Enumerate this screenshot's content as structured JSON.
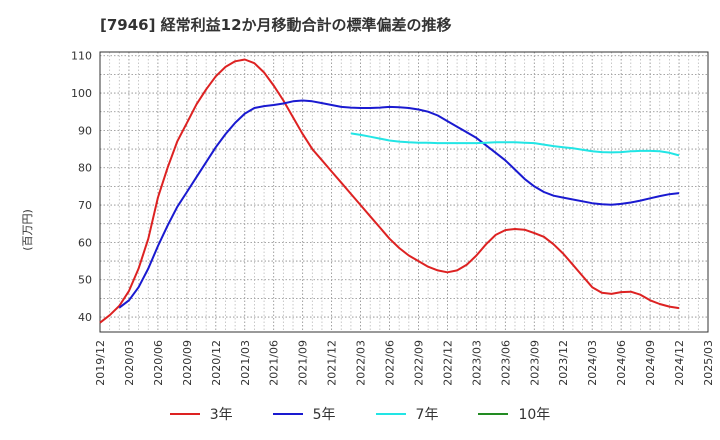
{
  "title": "[7946]  経常利益12か月移動合計の標準偏差の推移",
  "y_unit": "(百万円)",
  "chart_data": {
    "type": "line",
    "title": "[7946]  経常利益12か月移動合計の標準偏差の推移",
    "ylabel": "(百万円)",
    "xlabel": "",
    "ylim": [
      36,
      111
    ],
    "yticks": [
      40,
      50,
      60,
      70,
      80,
      90,
      100,
      110
    ],
    "x_start": "2019/12",
    "x_end": "2025/03",
    "xticks": [
      "2019/12",
      "2020/03",
      "2020/06",
      "2020/09",
      "2020/12",
      "2021/03",
      "2021/06",
      "2021/09",
      "2021/12",
      "2022/03",
      "2022/06",
      "2022/09",
      "2022/12",
      "2023/03",
      "2023/06",
      "2023/09",
      "2023/12",
      "2024/03",
      "2024/06",
      "2024/09",
      "2024/12",
      "2025/03"
    ],
    "grid": true,
    "legend_position": "bottom",
    "series": [
      {
        "name": "3年",
        "color": "#dd2222",
        "points": [
          [
            "2019/12",
            38.5
          ],
          [
            "2020/01",
            40.5
          ],
          [
            "2020/02",
            43
          ],
          [
            "2020/03",
            47
          ],
          [
            "2020/04",
            53
          ],
          [
            "2020/05",
            61
          ],
          [
            "2020/06",
            72
          ],
          [
            "2020/07",
            80
          ],
          [
            "2020/08",
            87
          ],
          [
            "2020/09",
            92
          ],
          [
            "2020/10",
            97
          ],
          [
            "2020/11",
            101
          ],
          [
            "2020/12",
            104.5
          ],
          [
            "2021/01",
            107
          ],
          [
            "2021/02",
            108.5
          ],
          [
            "2021/03",
            109
          ],
          [
            "2021/04",
            108
          ],
          [
            "2021/05",
            105.5
          ],
          [
            "2021/06",
            102
          ],
          [
            "2021/07",
            98
          ],
          [
            "2021/08",
            93.5
          ],
          [
            "2021/09",
            89
          ],
          [
            "2021/10",
            85
          ],
          [
            "2021/11",
            82
          ],
          [
            "2021/12",
            79
          ],
          [
            "2022/01",
            76
          ],
          [
            "2022/02",
            73
          ],
          [
            "2022/03",
            70
          ],
          [
            "2022/04",
            67
          ],
          [
            "2022/05",
            64
          ],
          [
            "2022/06",
            61
          ],
          [
            "2022/07",
            58.5
          ],
          [
            "2022/08",
            56.5
          ],
          [
            "2022/09",
            55
          ],
          [
            "2022/10",
            53.5
          ],
          [
            "2022/11",
            52.5
          ],
          [
            "2022/12",
            52
          ],
          [
            "2023/01",
            52.5
          ],
          [
            "2023/02",
            54
          ],
          [
            "2023/03",
            56.5
          ],
          [
            "2023/04",
            59.5
          ],
          [
            "2023/05",
            62
          ],
          [
            "2023/06",
            63.3
          ],
          [
            "2023/07",
            63.6
          ],
          [
            "2023/08",
            63.4
          ],
          [
            "2023/09",
            62.5
          ],
          [
            "2023/10",
            61.5
          ],
          [
            "2023/11",
            59.5
          ],
          [
            "2023/12",
            57
          ],
          [
            "2024/01",
            54
          ],
          [
            "2024/02",
            51
          ],
          [
            "2024/03",
            48
          ],
          [
            "2024/04",
            46.5
          ],
          [
            "2024/05",
            46.2
          ],
          [
            "2024/06",
            46.7
          ],
          [
            "2024/07",
            46.8
          ],
          [
            "2024/08",
            46
          ],
          [
            "2024/09",
            44.5
          ],
          [
            "2024/10",
            43.5
          ],
          [
            "2024/11",
            42.8
          ],
          [
            "2024/12",
            42.4
          ]
        ]
      },
      {
        "name": "5年",
        "color": "#1a1ad0",
        "points": [
          [
            "2020/02",
            42.5
          ],
          [
            "2020/03",
            44.5
          ],
          [
            "2020/04",
            48
          ],
          [
            "2020/05",
            53
          ],
          [
            "2020/06",
            59
          ],
          [
            "2020/07",
            64.5
          ],
          [
            "2020/08",
            69.5
          ],
          [
            "2020/09",
            73.5
          ],
          [
            "2020/10",
            77.5
          ],
          [
            "2020/11",
            81.5
          ],
          [
            "2020/12",
            85.5
          ],
          [
            "2021/01",
            89
          ],
          [
            "2021/02",
            92
          ],
          [
            "2021/03",
            94.5
          ],
          [
            "2021/04",
            96
          ],
          [
            "2021/05",
            96.5
          ],
          [
            "2021/06",
            96.8
          ],
          [
            "2021/07",
            97.2
          ],
          [
            "2021/08",
            97.8
          ],
          [
            "2021/09",
            98
          ],
          [
            "2021/10",
            97.8
          ],
          [
            "2021/11",
            97.3
          ],
          [
            "2021/12",
            96.8
          ],
          [
            "2022/01",
            96.3
          ],
          [
            "2022/02",
            96.1
          ],
          [
            "2022/03",
            96
          ],
          [
            "2022/04",
            96
          ],
          [
            "2022/05",
            96.1
          ],
          [
            "2022/06",
            96.3
          ],
          [
            "2022/07",
            96.2
          ],
          [
            "2022/08",
            96
          ],
          [
            "2022/09",
            95.6
          ],
          [
            "2022/10",
            95
          ],
          [
            "2022/11",
            94
          ],
          [
            "2022/12",
            92.5
          ],
          [
            "2023/01",
            91
          ],
          [
            "2023/02",
            89.5
          ],
          [
            "2023/03",
            88
          ],
          [
            "2023/04",
            86
          ],
          [
            "2023/05",
            84
          ],
          [
            "2023/06",
            82
          ],
          [
            "2023/07",
            79.5
          ],
          [
            "2023/08",
            77
          ],
          [
            "2023/09",
            75
          ],
          [
            "2023/10",
            73.5
          ],
          [
            "2023/11",
            72.5
          ],
          [
            "2023/12",
            72
          ],
          [
            "2024/01",
            71.5
          ],
          [
            "2024/02",
            71
          ],
          [
            "2024/03",
            70.5
          ],
          [
            "2024/04",
            70.2
          ],
          [
            "2024/05",
            70.1
          ],
          [
            "2024/06",
            70.3
          ],
          [
            "2024/07",
            70.7
          ],
          [
            "2024/08",
            71.2
          ],
          [
            "2024/09",
            71.8
          ],
          [
            "2024/10",
            72.4
          ],
          [
            "2024/11",
            72.9
          ],
          [
            "2024/12",
            73.2
          ]
        ]
      },
      {
        "name": "7年",
        "color": "#22e5e5",
        "points": [
          [
            "2022/02",
            89.2
          ],
          [
            "2022/03",
            88.8
          ],
          [
            "2022/04",
            88.3
          ],
          [
            "2022/05",
            87.8
          ],
          [
            "2022/06",
            87.3
          ],
          [
            "2022/07",
            87
          ],
          [
            "2022/08",
            86.8
          ],
          [
            "2022/09",
            86.7
          ],
          [
            "2022/10",
            86.7
          ],
          [
            "2022/11",
            86.6
          ],
          [
            "2022/12",
            86.6
          ],
          [
            "2023/01",
            86.6
          ],
          [
            "2023/02",
            86.6
          ],
          [
            "2023/03",
            86.6
          ],
          [
            "2023/04",
            86.7
          ],
          [
            "2023/05",
            86.8
          ],
          [
            "2023/06",
            86.8
          ],
          [
            "2023/07",
            86.8
          ],
          [
            "2023/08",
            86.7
          ],
          [
            "2023/09",
            86.6
          ],
          [
            "2023/10",
            86.2
          ],
          [
            "2023/11",
            85.8
          ],
          [
            "2023/12",
            85.5
          ],
          [
            "2024/01",
            85.2
          ],
          [
            "2024/02",
            84.8
          ],
          [
            "2024/03",
            84.4
          ],
          [
            "2024/04",
            84.2
          ],
          [
            "2024/05",
            84.1
          ],
          [
            "2024/06",
            84.2
          ],
          [
            "2024/07",
            84.4
          ],
          [
            "2024/08",
            84.5
          ],
          [
            "2024/09",
            84.5
          ],
          [
            "2024/10",
            84.4
          ],
          [
            "2024/11",
            84
          ],
          [
            "2024/12",
            83.3
          ]
        ]
      },
      {
        "name": "10年",
        "color": "#228b22",
        "points": []
      }
    ]
  }
}
